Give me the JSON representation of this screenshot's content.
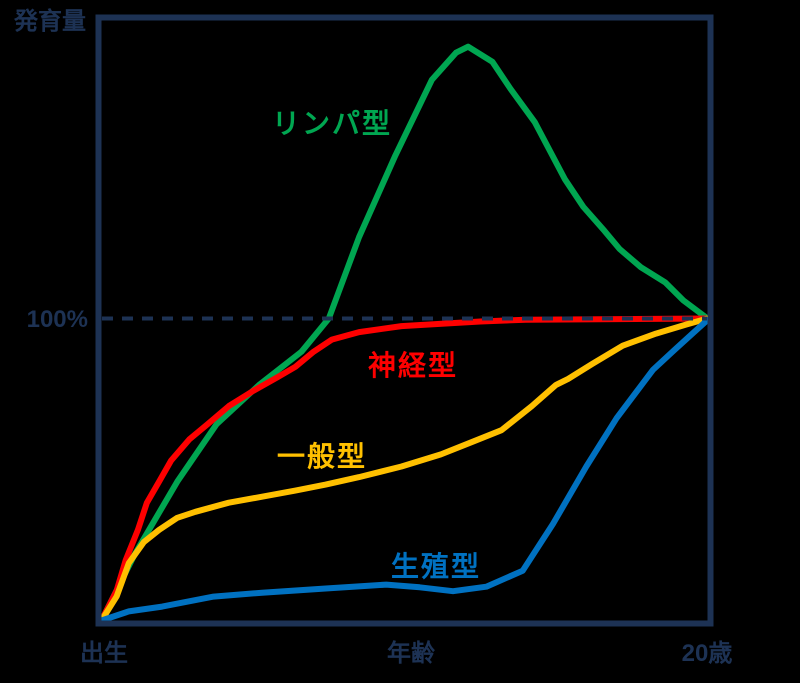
{
  "colors": {
    "background": "#000000",
    "frame": "#1D3254",
    "dashed_line": "#1D3254",
    "axis_text": "#1D3254",
    "lymphoid": "#00A651",
    "neural": "#FE0000",
    "general": "#FFC000",
    "genital": "#0071C1"
  },
  "axis": {
    "y_top_label": "発育量",
    "y_100_label": "100%",
    "x_left_label": "出生",
    "x_mid_label": "年齢",
    "x_right_label": "20歳"
  },
  "chart_data": {
    "type": "line",
    "x_axis": {
      "label": "年齢",
      "min": 0,
      "max": 20,
      "unit": "歳",
      "left_tick": "出生",
      "right_tick": "20歳",
      "grid": false
    },
    "y_axis": {
      "label": "発育量",
      "min": 0,
      "max": 200,
      "unit": "%",
      "reference_line": 100,
      "reference_style": "dashed",
      "grid": false
    },
    "legend_position": "inline-labels",
    "series": [
      {
        "id": "lymphoid",
        "name": "リンパ型",
        "color": "#00A651",
        "points": [
          [
            0,
            0
          ],
          [
            1.1,
            22
          ],
          [
            2.5,
            46
          ],
          [
            3.8,
            65
          ],
          [
            5.2,
            78
          ],
          [
            6.6,
            89
          ],
          [
            7.5,
            100
          ],
          [
            8.5,
            127
          ],
          [
            9.7,
            154
          ],
          [
            10.9,
            179
          ],
          [
            11.7,
            188
          ],
          [
            12.1,
            190
          ],
          [
            12.9,
            185
          ],
          [
            13.5,
            176
          ],
          [
            14.3,
            165
          ],
          [
            15.3,
            146
          ],
          [
            15.9,
            137
          ],
          [
            16.6,
            129
          ],
          [
            17.1,
            123
          ],
          [
            17.8,
            117
          ],
          [
            18.6,
            112
          ],
          [
            19.2,
            106
          ],
          [
            20,
            100
          ]
        ]
      },
      {
        "id": "neural",
        "name": "神経型",
        "color": "#FE0000",
        "points": [
          [
            0,
            0
          ],
          [
            0.5,
            10
          ],
          [
            0.8,
            20
          ],
          [
            1.2,
            30
          ],
          [
            1.5,
            39
          ],
          [
            1.9,
            46
          ],
          [
            2.3,
            53
          ],
          [
            2.9,
            60
          ],
          [
            3.5,
            65
          ],
          [
            4.2,
            71
          ],
          [
            5,
            76
          ],
          [
            5.8,
            80.5
          ],
          [
            6.4,
            84
          ],
          [
            7.0,
            89
          ],
          [
            7.6,
            93
          ],
          [
            8.5,
            95.5
          ],
          [
            9.9,
            97.5
          ],
          [
            11.3,
            98.3
          ],
          [
            12.5,
            99
          ],
          [
            14,
            99.6
          ],
          [
            20,
            100
          ]
        ]
      },
      {
        "id": "general",
        "name": "一般型",
        "color": "#FFC000",
        "points": [
          [
            0,
            0
          ],
          [
            0.5,
            8
          ],
          [
            0.9,
            19
          ],
          [
            1.4,
            26
          ],
          [
            1.9,
            30
          ],
          [
            2.5,
            34
          ],
          [
            3.1,
            36
          ],
          [
            4.2,
            39
          ],
          [
            5.3,
            41
          ],
          [
            6.4,
            43
          ],
          [
            7.4,
            45
          ],
          [
            8.5,
            47.5
          ],
          [
            9.9,
            51
          ],
          [
            11.2,
            55
          ],
          [
            12.2,
            59
          ],
          [
            13.2,
            63
          ],
          [
            14.2,
            71
          ],
          [
            15,
            78
          ],
          [
            15.4,
            80
          ],
          [
            16.2,
            85
          ],
          [
            17.2,
            91
          ],
          [
            18.3,
            95
          ],
          [
            19.3,
            98
          ],
          [
            20,
            100
          ]
        ]
      },
      {
        "id": "genital",
        "name": "生殖型",
        "color": "#0071C1",
        "points": [
          [
            0,
            0
          ],
          [
            0.9,
            3
          ],
          [
            2,
            4.6
          ],
          [
            3.7,
            7.9
          ],
          [
            5.3,
            9.2
          ],
          [
            7.4,
            10.6
          ],
          [
            9.4,
            11.9
          ],
          [
            10.5,
            11
          ],
          [
            11.6,
            9.7
          ],
          [
            12.7,
            11.2
          ],
          [
            13.9,
            16.5
          ],
          [
            14.9,
            32
          ],
          [
            16,
            51
          ],
          [
            17,
            67
          ],
          [
            18.2,
            83
          ],
          [
            18.9,
            89.5
          ],
          [
            19.5,
            95
          ],
          [
            20,
            99.5
          ]
        ]
      }
    ]
  }
}
